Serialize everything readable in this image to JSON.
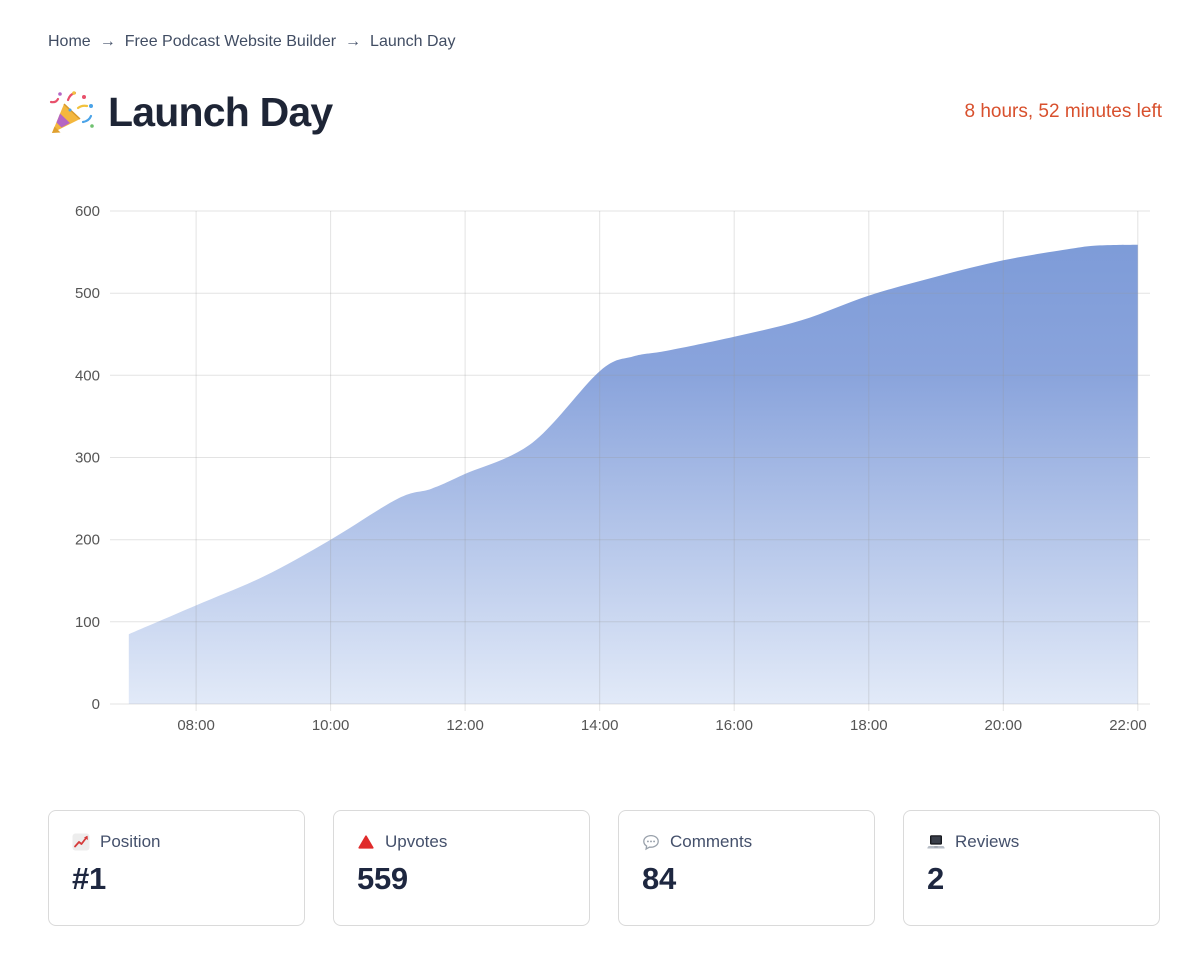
{
  "breadcrumb": {
    "items": [
      "Home",
      "Free Podcast Website Builder",
      "Launch Day"
    ],
    "separator": "→"
  },
  "header": {
    "title": "Launch Day",
    "title_icon": "party-popper-icon",
    "countdown": "8 hours, 52 minutes left"
  },
  "chart_data": {
    "type": "area",
    "title": "",
    "xlabel": "",
    "ylabel": "",
    "x_hours": [
      7,
      8,
      9,
      10,
      11,
      11.5,
      12,
      13,
      14,
      14.5,
      15,
      16,
      17,
      18,
      19,
      20,
      21,
      21.4,
      22
    ],
    "values": [
      85,
      120,
      155,
      200,
      250,
      262,
      280,
      318,
      405,
      423,
      430,
      447,
      467,
      497,
      520,
      540,
      554,
      558,
      559
    ],
    "x_tick_hours": [
      8,
      10,
      12,
      14,
      16,
      18,
      20,
      22
    ],
    "x_tick_labels": [
      "08:00",
      "10:00",
      "12:00",
      "14:00",
      "16:00",
      "18:00",
      "20:00",
      "22:00"
    ],
    "y_ticks": [
      0,
      100,
      200,
      300,
      400,
      500,
      600
    ],
    "ylim": [
      0,
      600
    ],
    "grid": true,
    "legend": "none",
    "fill_top_color": "#7d9bd8",
    "fill_mid_color": "#8aa4dc",
    "fill_bottom_color": "#e2eaf8",
    "grid_color": "#999999",
    "tick_color": "#555555"
  },
  "stats": [
    {
      "icon": "chart-increasing-icon",
      "label": "Position",
      "value": "#1"
    },
    {
      "icon": "red-triangle-up-icon",
      "label": "Upvotes",
      "value": "559"
    },
    {
      "icon": "speech-balloon-icon",
      "label": "Comments",
      "value": "84"
    },
    {
      "icon": "laptop-icon",
      "label": "Reviews",
      "value": "2"
    }
  ],
  "colors": {
    "accent_countdown": "#d8502d",
    "title": "#1e2536",
    "breadcrumb": "#414d63",
    "card_border": "#dadada",
    "card_label": "#44506b",
    "card_value": "#1e2740"
  }
}
